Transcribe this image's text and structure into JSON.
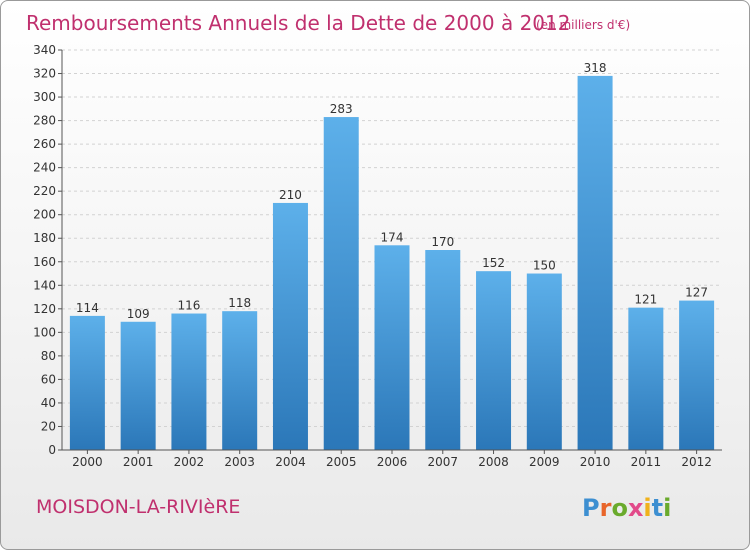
{
  "chart_data": {
    "type": "bar",
    "title": "Remboursements Annuels de la Dette de 2000 à 2012",
    "subtitle": "(en milliers d'€)",
    "categories": [
      "2000",
      "2001",
      "2002",
      "2003",
      "2004",
      "2005",
      "2006",
      "2007",
      "2008",
      "2009",
      "2010",
      "2011",
      "2012"
    ],
    "values": [
      114,
      109,
      116,
      118,
      210,
      283,
      174,
      170,
      152,
      150,
      318,
      121,
      127
    ],
    "ylim": [
      0,
      340
    ],
    "ytick_step": 20,
    "xlabel": "",
    "ylabel": "",
    "grid": true,
    "bar_color": "#3d92d6"
  },
  "commune": "MOISDON-LA-RIVIèRE",
  "logo": {
    "letters": [
      "P",
      "r",
      "o",
      "x",
      "i",
      "t",
      "i"
    ],
    "colors": [
      "#3d8fd1",
      "#e8652a",
      "#6aaa2c",
      "#e24a8a",
      "#f0b21b",
      "#3d8fd1",
      "#6aaa2c"
    ]
  }
}
